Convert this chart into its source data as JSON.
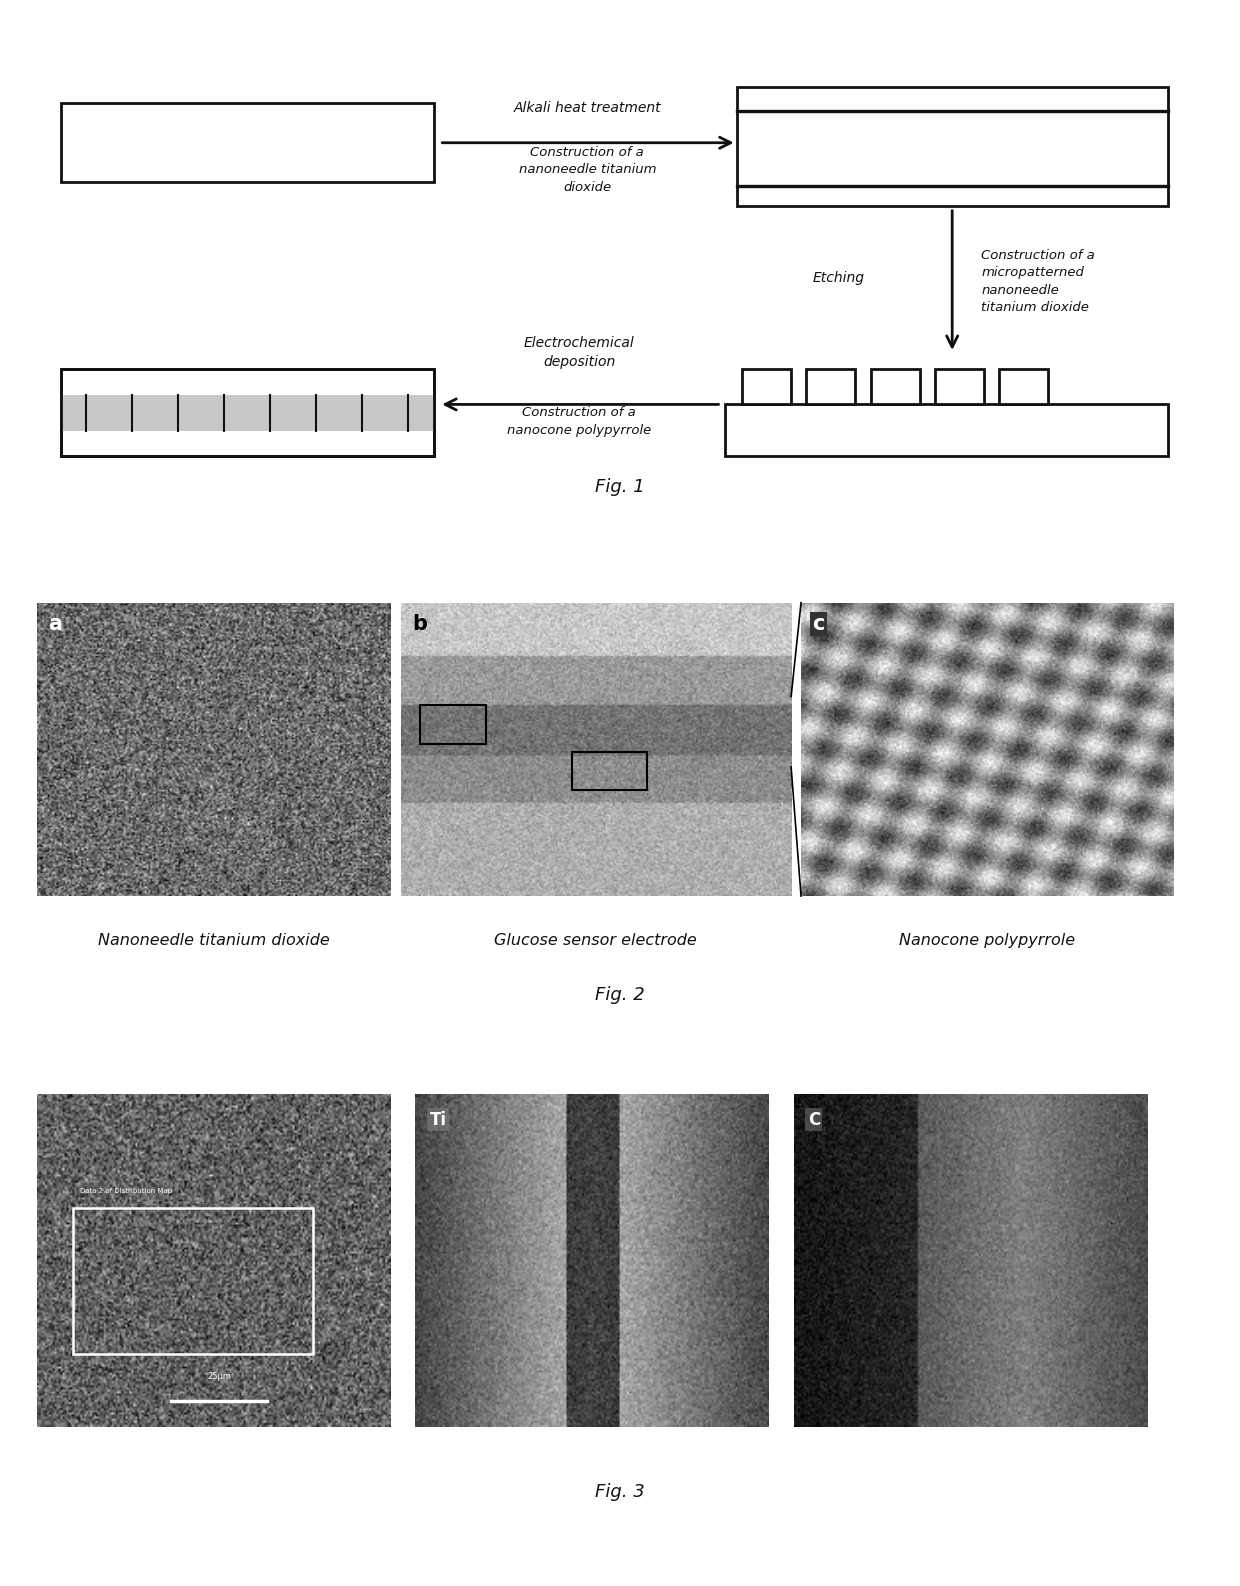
{
  "fig1_label": "Fig. 1",
  "fig2_label": "Fig. 2",
  "fig3_label": "Fig. 3",
  "arrow1_text_top": "Alkali heat treatment",
  "arrow1_text_bot": "Construction of a\nnanoneedle titanium\ndioxide",
  "arrow2_text_left": "Etching",
  "arrow2_text_right": "Construction of a\nmicropatterned\nnanoneedle\ntitanium dioxide",
  "arrow3_text_top": "Electrochemical\ndeposition",
  "arrow3_text_bot": "Construction of a\nnanocone polypyrrole",
  "label_a": "Nanoneedle titanium dioxide",
  "label_b": "Glucose sensor electrode",
  "label_c": "Nanocone polypyrrole",
  "bg_color": "#ffffff",
  "ec": "#111111"
}
